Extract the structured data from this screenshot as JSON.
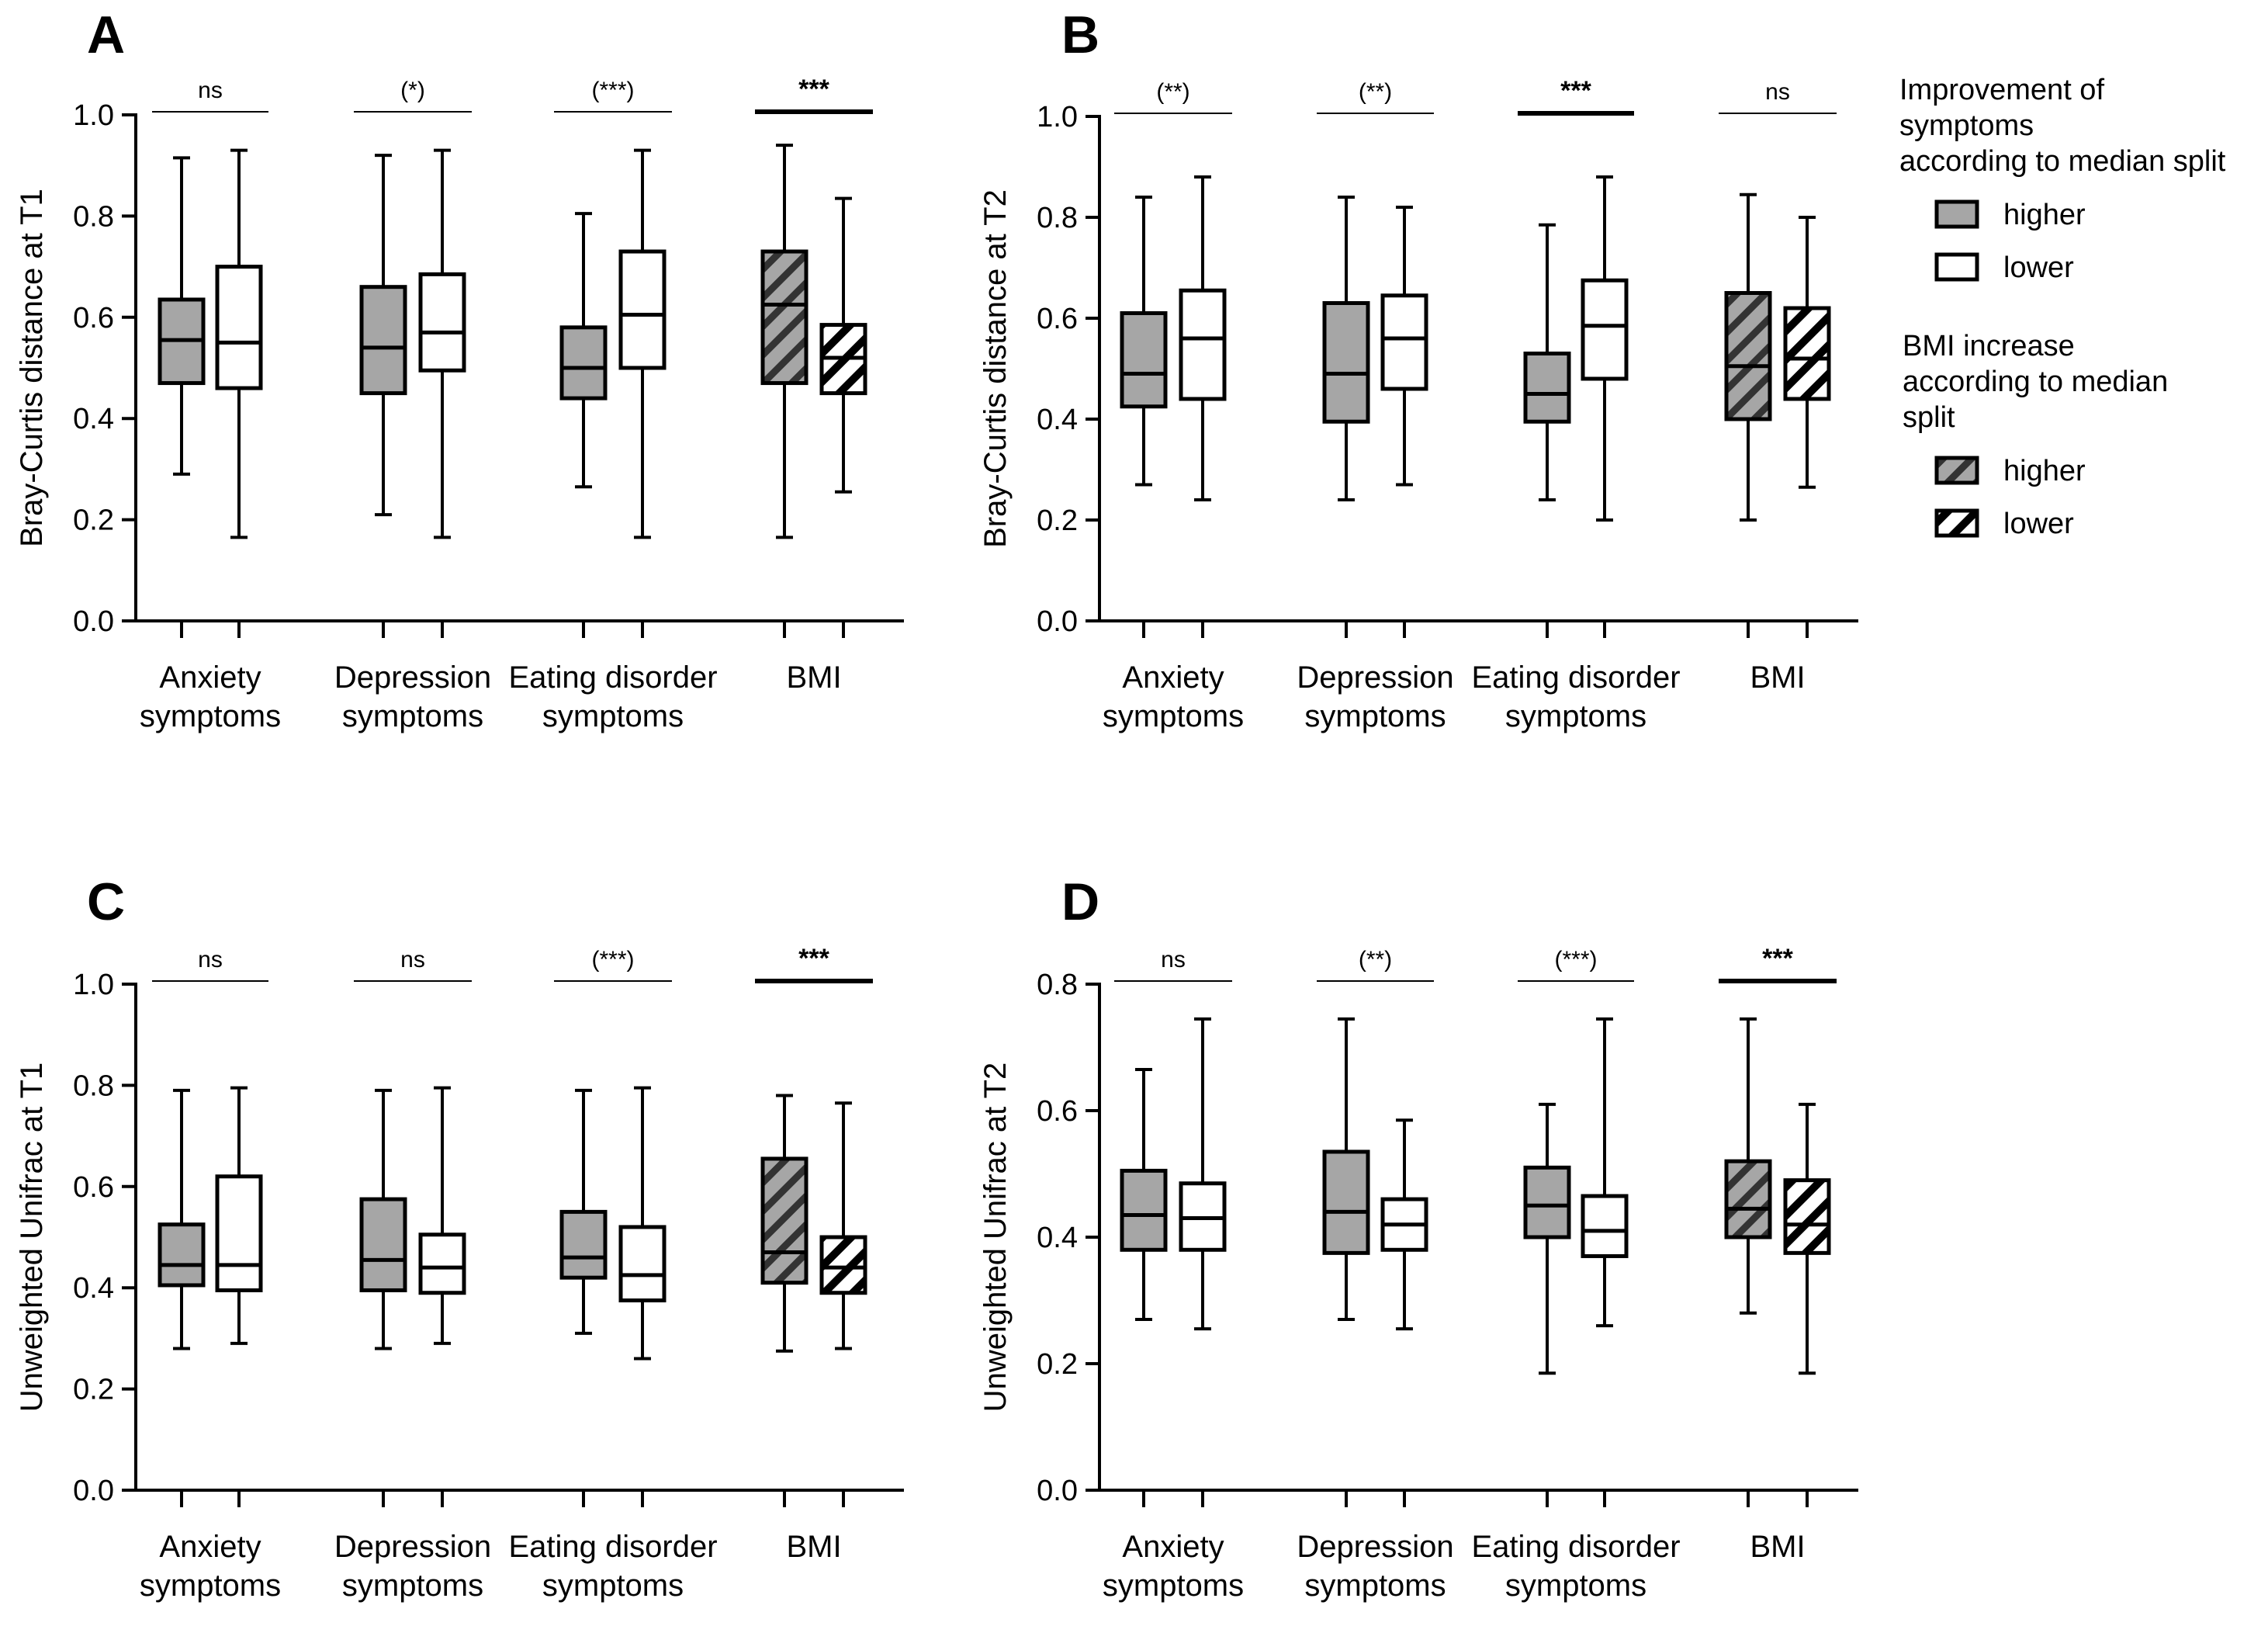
{
  "colors": {
    "higher_fill": "#a6a6a6",
    "lower_fill": "#ffffff",
    "stroke": "#000000"
  },
  "legend": {
    "symptoms_title_lines": [
      "Improvement of",
      "symptoms",
      "according to median split"
    ],
    "bmi_title_lines": [
      "BMI increase",
      "according to median",
      "split"
    ],
    "higher_label": "higher",
    "lower_label": "lower"
  },
  "chart_data": [
    {
      "panel": "A",
      "type": "boxplot",
      "ylabel": "Bray-Curtis distance at T1",
      "ylim": [
        0,
        1.0
      ],
      "yticks": [
        "0.0",
        "0.2",
        "0.4",
        "0.6",
        "0.8",
        "1.0"
      ],
      "groups": [
        {
          "label_lines": [
            "Anxiety",
            "symptoms"
          ],
          "significance": "ns",
          "sig_bold": false,
          "higher": {
            "min": 0.29,
            "q1": 0.47,
            "median": 0.555,
            "q3": 0.635,
            "max": 0.915
          },
          "lower": {
            "min": 0.165,
            "q1": 0.46,
            "median": 0.55,
            "q3": 0.7,
            "max": 0.93
          }
        },
        {
          "label_lines": [
            "Depression",
            "symptoms"
          ],
          "significance": "(*)",
          "sig_bold": false,
          "higher": {
            "min": 0.21,
            "q1": 0.45,
            "median": 0.54,
            "q3": 0.66,
            "max": 0.92
          },
          "lower": {
            "min": 0.165,
            "q1": 0.495,
            "median": 0.57,
            "q3": 0.685,
            "max": 0.93
          }
        },
        {
          "label_lines": [
            "Eating disorder",
            "symptoms"
          ],
          "significance": "(***)",
          "sig_bold": false,
          "higher": {
            "min": 0.265,
            "q1": 0.44,
            "median": 0.5,
            "q3": 0.58,
            "max": 0.805
          },
          "lower": {
            "min": 0.165,
            "q1": 0.5,
            "median": 0.605,
            "q3": 0.73,
            "max": 0.93
          }
        },
        {
          "label_lines": [
            "BMI"
          ],
          "significance": "***",
          "sig_bold": true,
          "hatched": true,
          "higher": {
            "min": 0.165,
            "q1": 0.47,
            "median": 0.625,
            "q3": 0.73,
            "max": 0.94
          },
          "lower": {
            "min": 0.255,
            "q1": 0.45,
            "median": 0.52,
            "q3": 0.585,
            "max": 0.835
          }
        }
      ]
    },
    {
      "panel": "B",
      "type": "boxplot",
      "ylabel": "Bray-Curtis distance at T2",
      "ylim": [
        0,
        1.0
      ],
      "yticks": [
        "0.0",
        "0.2",
        "0.4",
        "0.6",
        "0.8",
        "1.0"
      ],
      "groups": [
        {
          "label_lines": [
            "Anxiety",
            "symptoms"
          ],
          "significance": "(**)",
          "sig_bold": false,
          "higher": {
            "min": 0.27,
            "q1": 0.425,
            "median": 0.49,
            "q3": 0.61,
            "max": 0.84
          },
          "lower": {
            "min": 0.24,
            "q1": 0.44,
            "median": 0.56,
            "q3": 0.655,
            "max": 0.88
          }
        },
        {
          "label_lines": [
            "Depression",
            "symptoms"
          ],
          "significance": "(**)",
          "sig_bold": false,
          "higher": {
            "min": 0.24,
            "q1": 0.395,
            "median": 0.49,
            "q3": 0.63,
            "max": 0.84
          },
          "lower": {
            "min": 0.27,
            "q1": 0.46,
            "median": 0.56,
            "q3": 0.645,
            "max": 0.82
          }
        },
        {
          "label_lines": [
            "Eating disorder",
            "symptoms"
          ],
          "significance": "***",
          "sig_bold": true,
          "higher": {
            "min": 0.24,
            "q1": 0.395,
            "median": 0.45,
            "q3": 0.53,
            "max": 0.785
          },
          "lower": {
            "min": 0.2,
            "q1": 0.48,
            "median": 0.585,
            "q3": 0.675,
            "max": 0.88
          }
        },
        {
          "label_lines": [
            "BMI"
          ],
          "significance": "ns",
          "sig_bold": false,
          "hatched": true,
          "higher": {
            "min": 0.2,
            "q1": 0.4,
            "median": 0.505,
            "q3": 0.65,
            "max": 0.845
          },
          "lower": {
            "min": 0.265,
            "q1": 0.44,
            "median": 0.52,
            "q3": 0.62,
            "max": 0.8
          }
        }
      ]
    },
    {
      "panel": "C",
      "type": "boxplot",
      "ylabel": "Unweighted Unifrac at T1",
      "ylim": [
        0,
        1.0
      ],
      "yticks": [
        "0.0",
        "0.2",
        "0.4",
        "0.6",
        "0.8",
        "1.0"
      ],
      "groups": [
        {
          "label_lines": [
            "Anxiety",
            "symptoms"
          ],
          "significance": "ns",
          "sig_bold": false,
          "higher": {
            "min": 0.28,
            "q1": 0.405,
            "median": 0.445,
            "q3": 0.525,
            "max": 0.79
          },
          "lower": {
            "min": 0.29,
            "q1": 0.395,
            "median": 0.445,
            "q3": 0.62,
            "max": 0.795
          }
        },
        {
          "label_lines": [
            "Depression",
            "symptoms"
          ],
          "significance": "ns",
          "sig_bold": false,
          "higher": {
            "min": 0.28,
            "q1": 0.395,
            "median": 0.455,
            "q3": 0.575,
            "max": 0.79
          },
          "lower": {
            "min": 0.29,
            "q1": 0.39,
            "median": 0.44,
            "q3": 0.505,
            "max": 0.795
          }
        },
        {
          "label_lines": [
            "Eating disorder",
            "symptoms"
          ],
          "significance": "(***)",
          "sig_bold": false,
          "higher": {
            "min": 0.31,
            "q1": 0.42,
            "median": 0.46,
            "q3": 0.55,
            "max": 0.79
          },
          "lower": {
            "min": 0.26,
            "q1": 0.375,
            "median": 0.425,
            "q3": 0.52,
            "max": 0.795
          }
        },
        {
          "label_lines": [
            "BMI"
          ],
          "significance": "***",
          "sig_bold": true,
          "hatched": true,
          "higher": {
            "min": 0.275,
            "q1": 0.41,
            "median": 0.47,
            "q3": 0.655,
            "max": 0.78
          },
          "lower": {
            "min": 0.28,
            "q1": 0.39,
            "median": 0.44,
            "q3": 0.5,
            "max": 0.765
          }
        }
      ]
    },
    {
      "panel": "D",
      "type": "boxplot",
      "ylabel": "Unweighted Unifrac at T2",
      "ylim": [
        0,
        0.8
      ],
      "yticks": [
        "0.0",
        "0.2",
        "0.4",
        "0.6",
        "0.8"
      ],
      "groups": [
        {
          "label_lines": [
            "Anxiety",
            "symptoms"
          ],
          "significance": "ns",
          "sig_bold": false,
          "higher": {
            "min": 0.27,
            "q1": 0.38,
            "median": 0.435,
            "q3": 0.505,
            "max": 0.665
          },
          "lower": {
            "min": 0.255,
            "q1": 0.38,
            "median": 0.43,
            "q3": 0.485,
            "max": 0.745
          }
        },
        {
          "label_lines": [
            "Depression",
            "symptoms"
          ],
          "significance": "(**)",
          "sig_bold": false,
          "higher": {
            "min": 0.27,
            "q1": 0.375,
            "median": 0.44,
            "q3": 0.535,
            "max": 0.745
          },
          "lower": {
            "min": 0.255,
            "q1": 0.38,
            "median": 0.42,
            "q3": 0.46,
            "max": 0.585
          }
        },
        {
          "label_lines": [
            "Eating disorder",
            "symptoms"
          ],
          "significance": "(***)",
          "sig_bold": false,
          "higher": {
            "min": 0.185,
            "q1": 0.4,
            "median": 0.45,
            "q3": 0.51,
            "max": 0.61
          },
          "lower": {
            "min": 0.26,
            "q1": 0.37,
            "median": 0.41,
            "q3": 0.465,
            "max": 0.745
          }
        },
        {
          "label_lines": [
            "BMI"
          ],
          "significance": "***",
          "sig_bold": true,
          "hatched": true,
          "higher": {
            "min": 0.28,
            "q1": 0.4,
            "median": 0.445,
            "q3": 0.52,
            "max": 0.745
          },
          "lower": {
            "min": 0.185,
            "q1": 0.375,
            "median": 0.42,
            "q3": 0.49,
            "max": 0.61
          }
        }
      ]
    }
  ]
}
